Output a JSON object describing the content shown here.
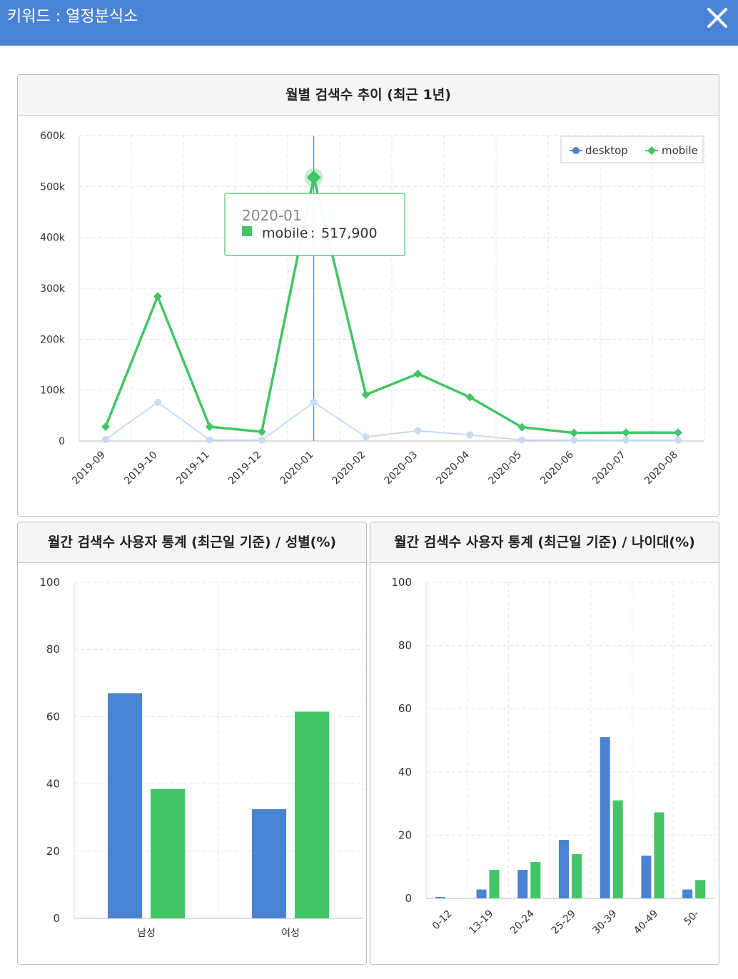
{
  "header": {
    "title": "키워드 : 열정분식소",
    "close_icon": "close-icon"
  },
  "colors": {
    "header_bg": "#4a83d3",
    "desktop": "#4a83d3",
    "mobile": "#42c566",
    "desktop_faded": "#c9daf5"
  },
  "chart_data": [
    {
      "type": "line",
      "title": "월별 검색수 추이 (최근 1년)",
      "x": [
        "2019-09",
        "2019-10",
        "2019-11",
        "2019-12",
        "2020-01",
        "2020-02",
        "2020-03",
        "2020-04",
        "2020-05",
        "2020-06",
        "2020-07",
        "2020-08"
      ],
      "series": [
        {
          "name": "desktop",
          "values": [
            3000,
            76000,
            2000,
            1500,
            76000,
            8000,
            20000,
            12000,
            2000,
            1500,
            1500,
            1500
          ]
        },
        {
          "name": "mobile",
          "values": [
            28000,
            284000,
            28000,
            18000,
            517900,
            91000,
            132000,
            86000,
            27000,
            16000,
            16500,
            16500
          ]
        }
      ],
      "yticks": [
        "0",
        "100k",
        "200k",
        "300k",
        "400k",
        "500k",
        "600k"
      ],
      "ylim": [
        0,
        600000
      ],
      "grid": true,
      "legend": "top-right",
      "tooltip": {
        "label": "2020-01",
        "series": "mobile",
        "value": "517,900"
      }
    },
    {
      "type": "bar",
      "title": "월간 검색수 사용자 통계 (최근일 기준) / 성별(%)",
      "categories": [
        "남성",
        "여성"
      ],
      "series": [
        {
          "values": [
            67,
            32.5
          ]
        },
        {
          "values": [
            38.5,
            61.5
          ]
        }
      ],
      "yticks": [
        "0",
        "20",
        "40",
        "60",
        "80",
        "100"
      ],
      "ylim": [
        0,
        100
      ],
      "grid": true
    },
    {
      "type": "bar",
      "title": "월간 검색수 사용자 통계 (최근일 기준) / 나이대(%)",
      "categories": [
        "0-12",
        "13-19",
        "20-24",
        "25-29",
        "30-39",
        "40-49",
        "50-"
      ],
      "series": [
        {
          "values": [
            0.4,
            2.8,
            9,
            18.5,
            51,
            13.5,
            2.8
          ]
        },
        {
          "values": [
            0,
            9,
            11.5,
            14,
            31,
            27.2,
            5.8
          ]
        }
      ],
      "yticks": [
        "0",
        "20",
        "40",
        "60",
        "80",
        "100"
      ],
      "ylim": [
        0,
        100
      ],
      "grid": true
    }
  ]
}
